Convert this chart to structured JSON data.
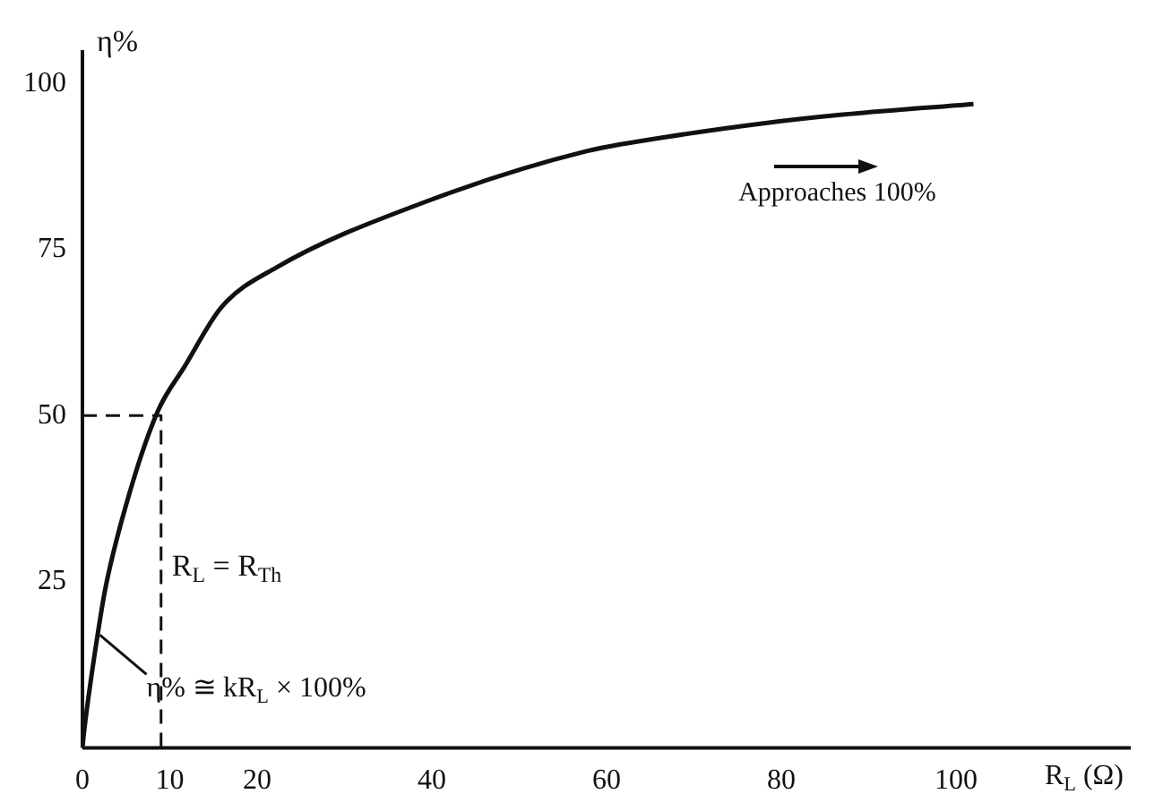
{
  "chart_data": {
    "type": "line",
    "xlabel": "R$_{L}$ (Ω)",
    "ylabel": "η%",
    "series": [
      {
        "color": "#111111",
        "x": [
          0,
          0.2,
          1.7,
          2.7,
          5.4,
          8.6,
          11.7,
          15.9,
          22.2,
          38.9,
          57.7,
          66.7,
          78,
          87,
          102
        ],
        "values": [
          0,
          2.6,
          16.7,
          24.5,
          38.4,
          50.6,
          57.4,
          66.3,
          72.3,
          82,
          89.8,
          91.9,
          94,
          95.3,
          96.9
        ]
      },
      {
        "color": "#111111",
        "line_style": "dashed",
        "x": [
          0,
          9,
          9
        ],
        "values": [
          50,
          50,
          0
        ]
      }
    ],
    "xlim": [
      0,
      120
    ],
    "xticks": [
      0,
      10,
      20,
      40,
      60,
      80,
      100
    ],
    "ylim": [
      0,
      105
    ],
    "yticks": [
      25,
      50,
      75,
      100
    ],
    "grid": false,
    "legend": false,
    "marker": "none",
    "line_style": "solid",
    "annotations": [
      "Approaches 100%",
      {
        "text": "R$_{L}$ = R$_{Th}$",
        "x": 9,
        "y": 25
      },
      {
        "text": "η% ≅ kR$_{L}$ × 100%",
        "x": 2,
        "y": 17
      }
    ]
  }
}
